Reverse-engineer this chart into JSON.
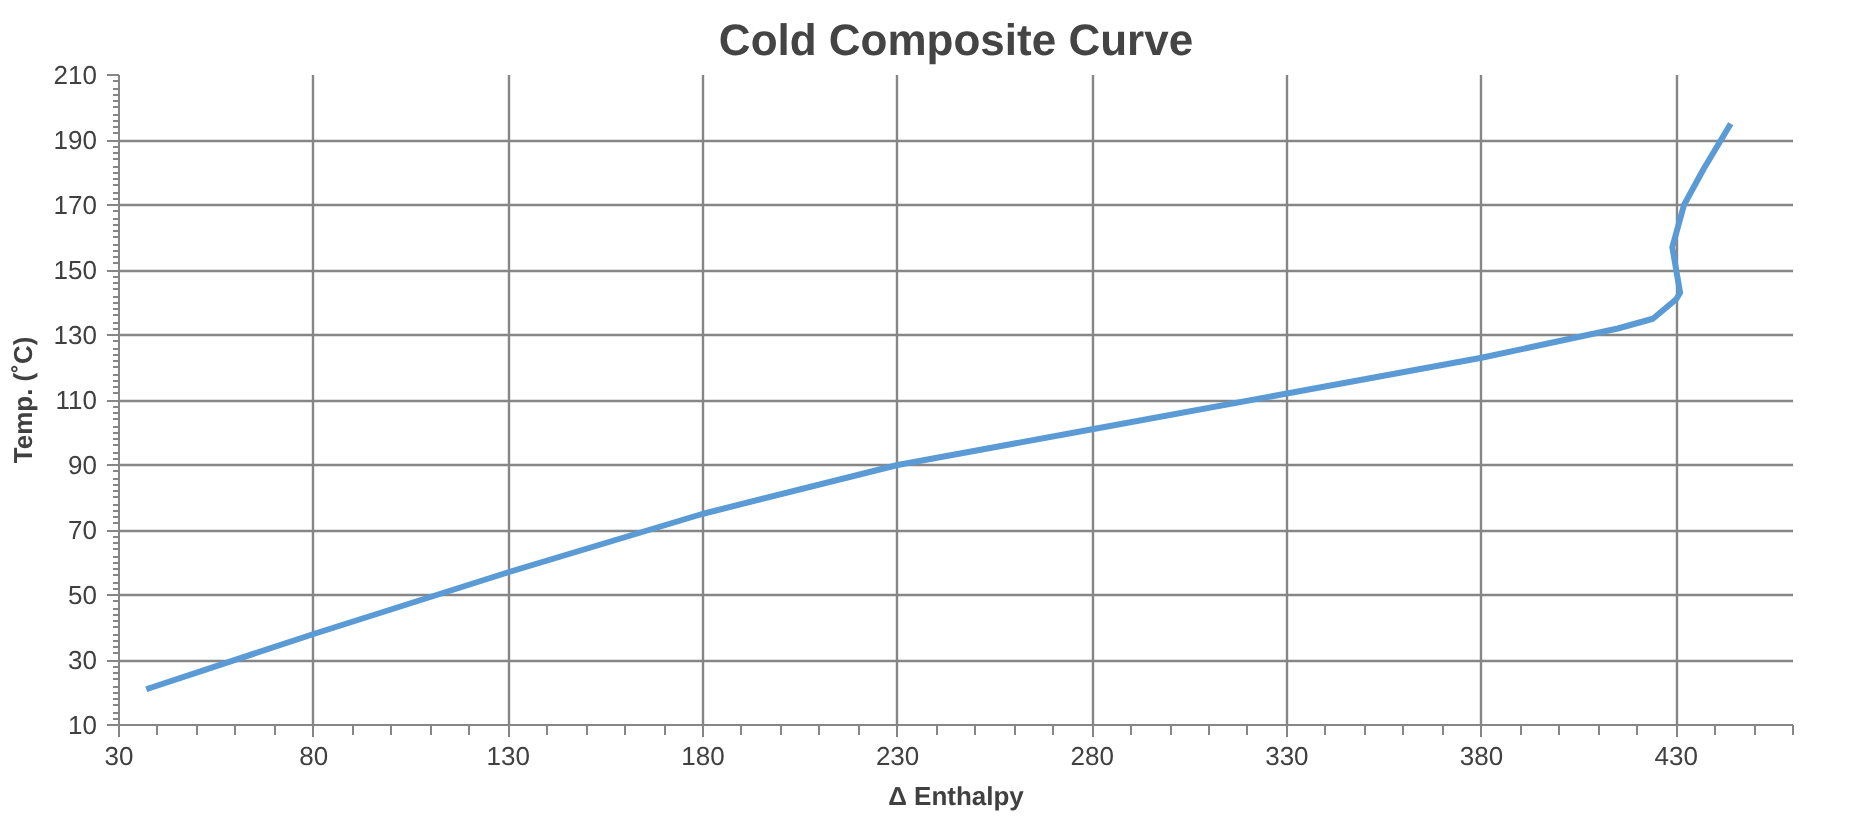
{
  "chart_data": {
    "type": "line",
    "title": "Cold Composite Curve",
    "xlabel": "Δ Enthalpy",
    "ylabel": "Temp. (˚C)",
    "x": [
      37,
      80,
      130,
      180,
      230,
      280,
      330,
      380,
      415,
      424,
      430,
      431,
      429,
      432,
      437,
      444
    ],
    "series": [
      {
        "color": "#5b9bd5",
        "values": [
          21,
          38,
          57,
          75,
          90,
          101,
          112,
          123,
          132,
          135,
          141,
          143,
          157,
          170,
          181,
          195
        ]
      }
    ],
    "xlim": [
      30,
      460
    ],
    "xticks": [
      30,
      80,
      130,
      180,
      230,
      280,
      330,
      380,
      430
    ],
    "ylim": [
      10,
      210
    ],
    "yticks": [
      10,
      30,
      50,
      70,
      90,
      110,
      130,
      150,
      170,
      190,
      210
    ],
    "grid": true,
    "line_style": "solid"
  }
}
